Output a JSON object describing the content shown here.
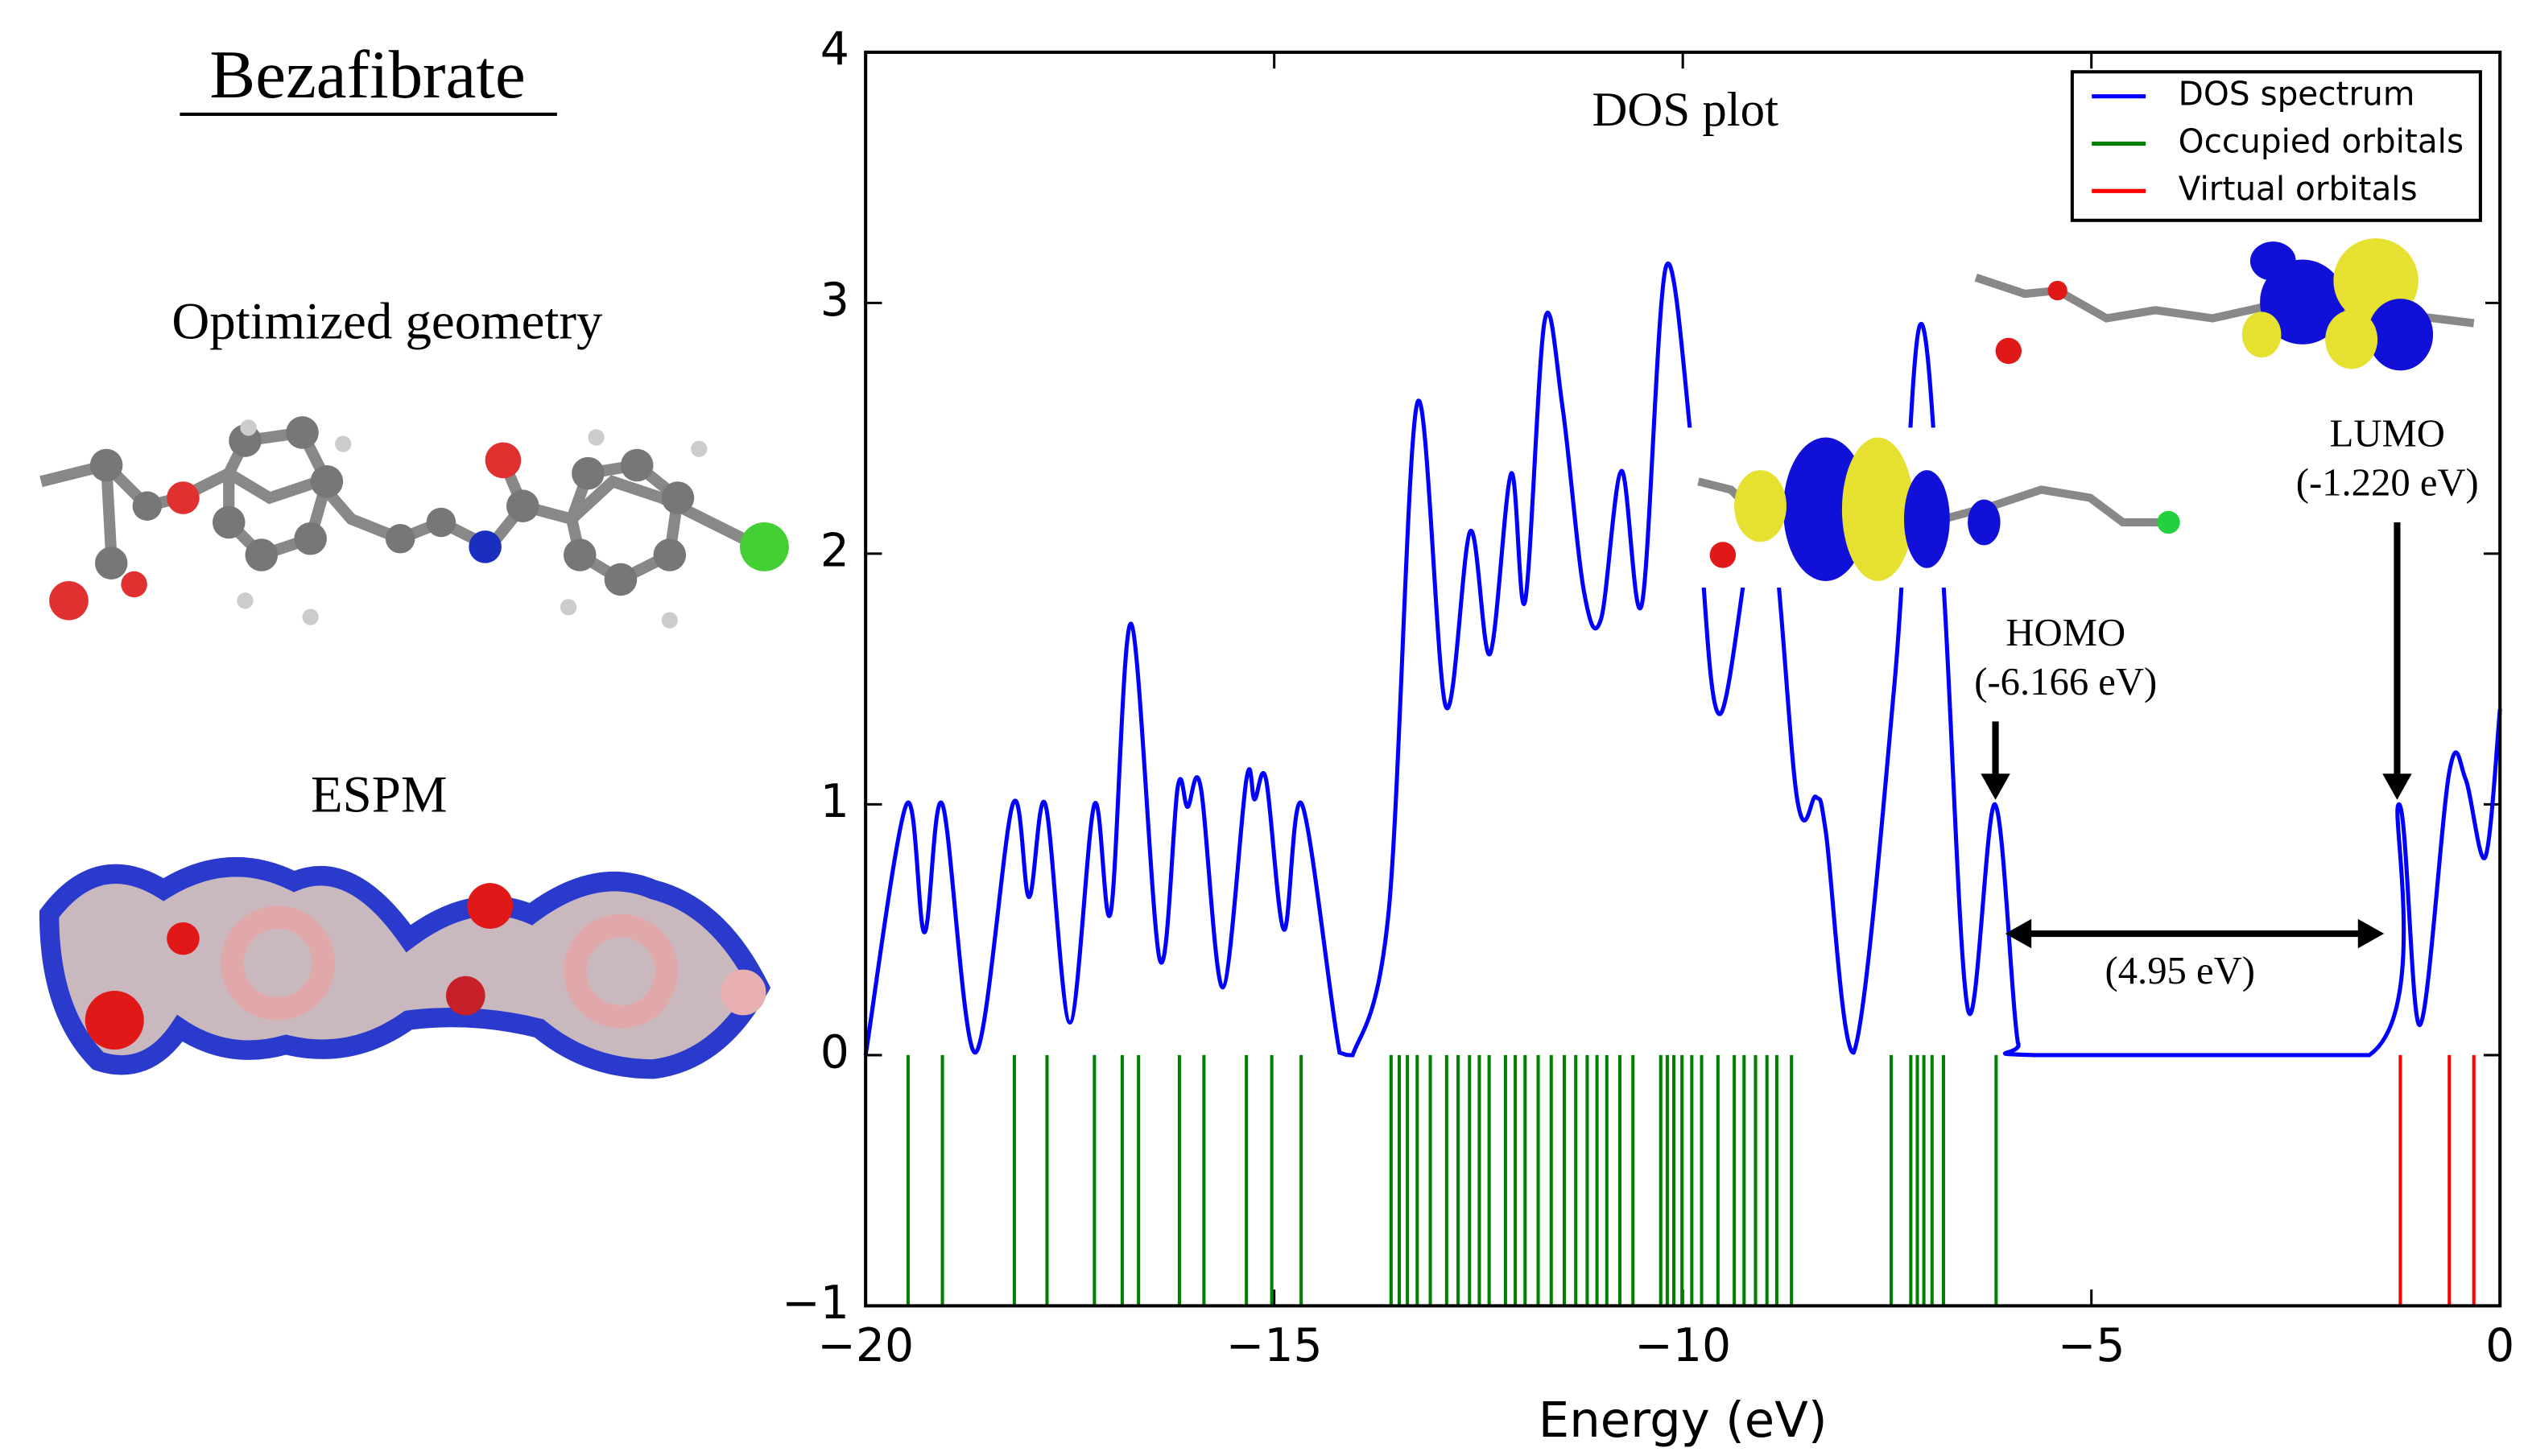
{
  "labels": {
    "compound": "Bezafibrate",
    "geometry": "Optimized geometry",
    "espm": "ESPM"
  },
  "chart_data": {
    "type": "line",
    "xlabel": "Energy (eV)",
    "xlim": [
      -20,
      0
    ],
    "ylim": [
      -1,
      4
    ],
    "xticks": [
      {
        "value": -20,
        "label": "−20"
      },
      {
        "value": -15,
        "label": "−15"
      },
      {
        "value": -10,
        "label": "−10"
      },
      {
        "value": -5,
        "label": "−5"
      },
      0
    ],
    "yticks": [
      {
        "value": -1,
        "label": "−1"
      },
      0,
      1,
      2,
      3,
      4
    ],
    "legend": "upper right",
    "annotations": [
      "DOS plot",
      "HOMO",
      "(-6.166 eV)",
      "LUMO",
      "(-1.220 eV)",
      "(4.95 eV)"
    ],
    "series": [
      {
        "name": "DOS spectrum",
        "color": "#0000ff",
        "x": [
          -20,
          -19.5,
          -19.28,
          -19.06,
          -18.66,
          -18.2,
          -18.0,
          -17.8,
          -17.5,
          -17.2,
          -17.0,
          -16.75,
          -16.4,
          -16.18,
          -16.06,
          -15.9,
          -15.63,
          -15.34,
          -15.24,
          -15.1,
          -14.88,
          -14.66,
          -14.2,
          -14.04,
          -13.6,
          -13.25,
          -12.9,
          -12.6,
          -12.36,
          -12.1,
          -11.93,
          -11.69,
          -11.47,
          -11.21,
          -11.0,
          -10.75,
          -10.5,
          -10.2,
          -9.85,
          -9.55,
          -9.0,
          -8.6,
          -8.37,
          -8.25,
          -7.91,
          -7.41,
          -7.1,
          -6.82,
          -6.51,
          -6.18,
          -5.9,
          -5.7,
          -1.6,
          -1.24,
          -0.98,
          -0.62,
          -0.42,
          -0.18,
          0
        ],
        "values": [
          0,
          1.0,
          0.49,
          1.0,
          0.01,
          1.0,
          0.63,
          1.0,
          0.13,
          1.0,
          0.57,
          1.72,
          0.38,
          1.07,
          0.99,
          1.07,
          0.27,
          1.1,
          1.02,
          1.1,
          0.5,
          1.0,
          0.01,
          0,
          0.57,
          2.6,
          1.39,
          2.09,
          1.6,
          2.32,
          1.81,
          2.93,
          2.58,
          1.85,
          1.74,
          2.33,
          1.8,
          3.15,
          2.3,
          1.36,
          2.26,
          1.02,
          1.03,
          0.89,
          0.01,
          1.48,
          2.91,
          1.93,
          0.18,
          1.0,
          0.05,
          0,
          0,
          1.0,
          0.12,
          1.13,
          1.1,
          0.79,
          1.38
        ]
      },
      {
        "name": "Occupied orbitals",
        "color": "#008000",
        "x": [
          -19.48,
          -19.06,
          -18.18,
          -17.78,
          -17.2,
          -16.86,
          -16.66,
          -16.16,
          -15.86,
          -15.34,
          -15.03,
          -14.67,
          -13.57,
          -13.47,
          -13.37,
          -13.25,
          -13.09,
          -12.89,
          -12.75,
          -12.61,
          -12.49,
          -12.37,
          -12.17,
          -12.05,
          -11.93,
          -11.77,
          -11.61,
          -11.45,
          -11.31,
          -11.17,
          -11.05,
          -10.93,
          -10.77,
          -10.61,
          -10.27,
          -10.19,
          -10.11,
          -10.01,
          -9.89,
          -9.77,
          -9.57,
          -9.37,
          -9.25,
          -9.11,
          -8.97,
          -8.85,
          -8.67,
          -7.45,
          -7.21,
          -7.13,
          -7.05,
          -6.95,
          -6.81,
          -6.166
        ]
      },
      {
        "name": "Virtual orbitals",
        "color": "#ff0000",
        "x": [
          -1.22,
          -0.62,
          -0.32
        ]
      }
    ]
  }
}
